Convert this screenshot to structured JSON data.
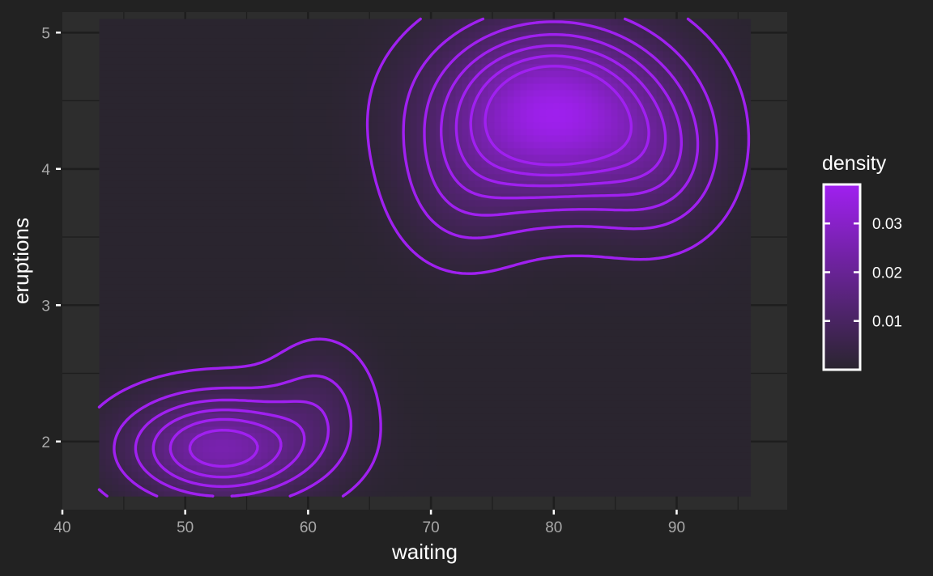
{
  "chart_data": {
    "type": "heatmap",
    "overlay": "density contour lines",
    "xlabel": "waiting",
    "ylabel": "eruptions",
    "xlim": [
      40,
      99
    ],
    "ylim": [
      1.5,
      5.15
    ],
    "x_ticks": [
      40,
      50,
      60,
      70,
      80,
      90
    ],
    "y_ticks": [
      2,
      3,
      4,
      5
    ],
    "data_extent": {
      "x": [
        43,
        96
      ],
      "y": [
        1.6,
        5.1
      ]
    },
    "grid": true,
    "density_peaks": [
      {
        "waiting": 80.0,
        "eruptions": 4.4,
        "density": 0.037
      },
      {
        "waiting": 53.0,
        "eruptions": 1.95,
        "density": 0.025
      }
    ],
    "contour_levels": [
      0.002,
      0.006,
      0.01,
      0.014,
      0.018,
      0.022,
      0.026
    ],
    "legend": {
      "title": "density",
      "placement": "right",
      "range": [
        0.0,
        0.038
      ],
      "tick_values": [
        0.01,
        0.02,
        0.03
      ],
      "tick_labels": [
        "0.01",
        "0.02",
        "0.03"
      ]
    },
    "colors": {
      "background": "#222222",
      "panel": "#2d2d2d",
      "grid": "#1e1e1e",
      "low": "#2a252f",
      "high": "#a020f0",
      "text": "#ffffff",
      "tick_text": "#a8a8a8"
    }
  }
}
